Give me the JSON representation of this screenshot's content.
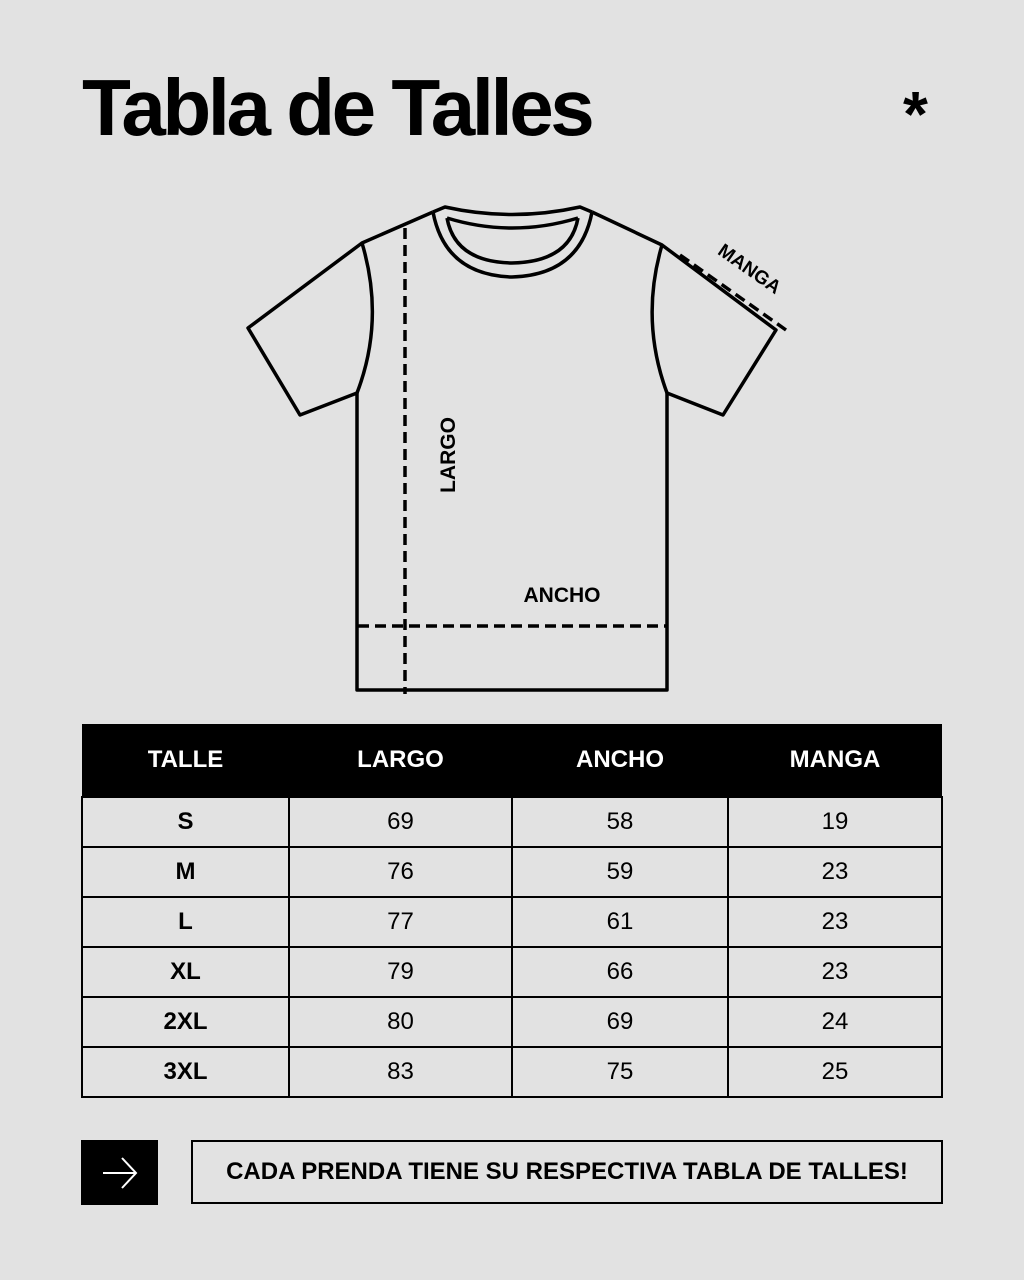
{
  "header": {
    "title": "Tabla de Talles",
    "decoration_icon": "asterisk-icon"
  },
  "diagram": {
    "labels": {
      "largo": "LARGO",
      "ancho": "ANCHO",
      "manga": "MANGA"
    }
  },
  "table": {
    "columns": [
      "TALLE",
      "LARGO",
      "ANCHO",
      "MANGA"
    ],
    "rows": [
      [
        "S",
        "69",
        "58",
        "19"
      ],
      [
        "M",
        "76",
        "59",
        "23"
      ],
      [
        "L",
        "77",
        "61",
        "23"
      ],
      [
        "XL",
        "79",
        "66",
        "23"
      ],
      [
        "2XL",
        "80",
        "69",
        "24"
      ],
      [
        "3XL",
        "83",
        "75",
        "25"
      ]
    ]
  },
  "footer": {
    "icon": "arrow-right-icon",
    "note": "CADA PRENDA TIENE SU RESPECTIVA TABLA DE TALLES!"
  }
}
